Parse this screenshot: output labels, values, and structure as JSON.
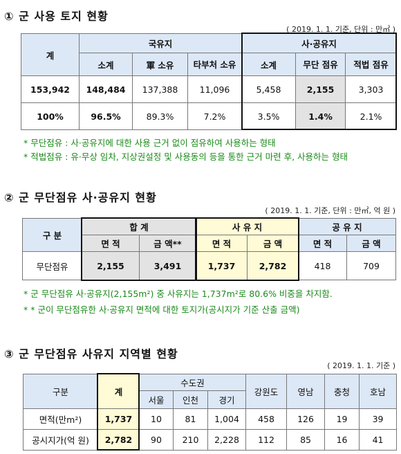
{
  "s1": {
    "title": "① 군 사용 토지 현황",
    "note": "( 2019. 1. 1. 기준, 단위 : 만㎡ )",
    "headers": {
      "total": "계",
      "national": "국유지",
      "sub": "소계",
      "army": "軍 소유",
      "other": "타부처 소유",
      "public_private": "사·공유지",
      "sub2": "소계",
      "unauth": "무단 점유",
      "legal": "적법 점유"
    },
    "row1": [
      "153,942",
      "148,484",
      "137,388",
      "11,096",
      "5,458",
      "2,155",
      "3,303"
    ],
    "row2": [
      "100%",
      "96.5%",
      "89.3%",
      "7.2%",
      "3.5%",
      "1.4%",
      "2.1%"
    ],
    "footnotes": [
      "* 무단점유 : 사·공유지에 대한 사용 근거 없이 점유하여 사용하는 형태",
      "* 적법점유 : 유·무상 임차, 지상권설정 및 사용동의 등을 통한 근거 마련 후, 사용하는 형태"
    ]
  },
  "s2": {
    "title": "② 군 무단점유 사·공유지 현황",
    "note": "( 2019. 1. 1. 기준, 단위 : 만㎡, 억 원 )",
    "headers": {
      "category": "구 분",
      "total": "합 계",
      "private": "사 유 지",
      "public": "공 유 지",
      "area": "면 적",
      "amount": "금 액",
      "amount_star": "금 액**"
    },
    "row_label": "무단점유",
    "row": [
      "2,155",
      "3,491",
      "1,737",
      "2,782",
      "418",
      "709"
    ],
    "footnotes": [
      "* 군 무단점유 사·공유지(2,155m²) 중 사유지는 1,737m²로 80.6% 비중을 차지함.",
      "* * 군이 무단점유한 사·공유지 면적에 대한 토지가(공시지가 기준 산출 금액)"
    ]
  },
  "s3": {
    "title": "③ 군 무단점유 사유지 지역별 현황",
    "note": "( 2019. 1. 1. 기준 )",
    "headers": {
      "category": "구분",
      "total": "계",
      "capital": "수도권",
      "seoul": "서울",
      "incheon": "인천",
      "gyeonggi": "경기",
      "gangwon": "강원도",
      "yeongnam": "영남",
      "chungcheong": "충청",
      "honam": "호남"
    },
    "row1_label": "면적(만m²)",
    "row1": [
      "1,737",
      "10",
      "81",
      "1,004",
      "458",
      "126",
      "19",
      "39"
    ],
    "row2_label": "공시지가(억 원)",
    "row2": [
      "2,782",
      "90",
      "210",
      "2,228",
      "112",
      "85",
      "16",
      "41"
    ]
  }
}
